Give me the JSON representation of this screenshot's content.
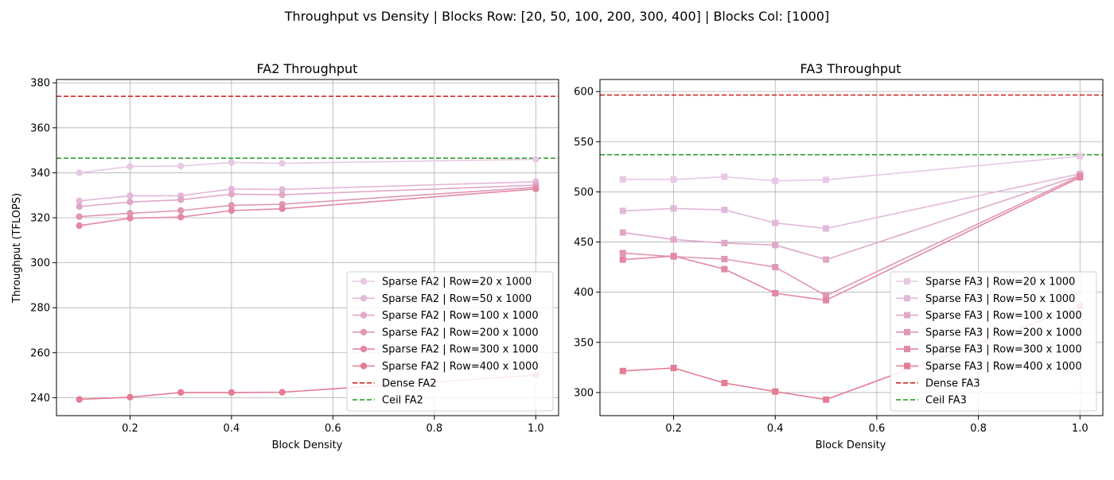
{
  "suptitle": "Throughput vs Density | Blocks Row: [20, 50, 100, 200, 300, 400] | Blocks Col: [1000]",
  "chart_data": [
    {
      "type": "line",
      "title": "FA2 Throughput",
      "xlabel": "Block Density",
      "ylabel": "Throughput (TFLOPS)",
      "xlim": [
        0.055,
        1.045
      ],
      "ylim": [
        232,
        381.5
      ],
      "xticks": [
        0.2,
        0.4,
        0.6,
        0.8,
        1.0
      ],
      "xtick_labels": [
        "0.2",
        "0.4",
        "0.6",
        "0.8",
        "1.0"
      ],
      "yticks": [
        240,
        260,
        280,
        300,
        320,
        340,
        360,
        380
      ],
      "ytick_labels": [
        "240",
        "260",
        "280",
        "300",
        "320",
        "340",
        "360",
        "380"
      ],
      "grid": true,
      "marker": "circle",
      "x": [
        0.1,
        0.2,
        0.3,
        0.4,
        0.5,
        1.0
      ],
      "legend_position": "lower right",
      "series": [
        {
          "name": "Sparse FA2 | Row=20 x 1000",
          "color": "#e8c8e4",
          "values": [
            340.0,
            342.8,
            343.0,
            344.6,
            344.2,
            346.0
          ]
        },
        {
          "name": "Sparse FA2 | Row=50 x 1000",
          "color": "#e3b8d8",
          "values": [
            327.5,
            329.8,
            329.8,
            332.8,
            332.6,
            336.0
          ]
        },
        {
          "name": "Sparse FA2 | Row=100 x 1000",
          "color": "#e0a8c8",
          "values": [
            325.0,
            327.0,
            328.0,
            330.5,
            330.2,
            334.5
          ]
        },
        {
          "name": "Sparse FA2 | Row=200 x 1000",
          "color": "#e096b4",
          "values": [
            320.5,
            322.0,
            323.2,
            325.5,
            326.0,
            333.5
          ]
        },
        {
          "name": "Sparse FA2 | Row=300 x 1000",
          "color": "#e388a2",
          "values": [
            316.5,
            319.8,
            320.3,
            323.2,
            324.0,
            332.8
          ]
        },
        {
          "name": "Sparse FA2 | Row=400 x 1000",
          "color": "#e47c94",
          "values": [
            239.2,
            240.2,
            242.3,
            242.3,
            242.4,
            250.0
          ]
        }
      ],
      "reference_lines": [
        {
          "name": "Dense FA2",
          "color": "#d62728",
          "value": 374.0
        },
        {
          "name": "Ceil FA2",
          "color": "#2ca02c",
          "value": 346.5
        }
      ]
    },
    {
      "type": "line",
      "title": "FA3 Throughput",
      "xlabel": "Block Density",
      "ylabel": "",
      "xlim": [
        0.055,
        1.045
      ],
      "ylim": [
        277,
        612
      ],
      "xticks": [
        0.2,
        0.4,
        0.6,
        0.8,
        1.0
      ],
      "xtick_labels": [
        "0.2",
        "0.4",
        "0.6",
        "0.8",
        "1.0"
      ],
      "yticks": [
        300,
        350,
        400,
        450,
        500,
        550,
        600
      ],
      "ytick_labels": [
        "300",
        "350",
        "400",
        "450",
        "500",
        "550",
        "600"
      ],
      "grid": true,
      "marker": "square",
      "x": [
        0.1,
        0.2,
        0.3,
        0.4,
        0.5,
        1.0
      ],
      "legend_position": "lower right",
      "series": [
        {
          "name": "Sparse FA3 | Row=20 x 1000",
          "color": "#e8c8e4",
          "values": [
            512.5,
            512.3,
            515.0,
            511.0,
            512.0,
            535.5
          ]
        },
        {
          "name": "Sparse FA3 | Row=50 x 1000",
          "color": "#e3b8d8",
          "values": [
            481.0,
            483.5,
            482.0,
            469.0,
            463.5,
            518.0
          ]
        },
        {
          "name": "Sparse FA3 | Row=100 x 1000",
          "color": "#e0a8c8",
          "values": [
            459.5,
            452.5,
            449.0,
            447.0,
            432.5,
            516.5
          ]
        },
        {
          "name": "Sparse FA3 | Row=200 x 1000",
          "color": "#e096b4",
          "values": [
            439.0,
            435.5,
            433.0,
            425.0,
            396.5,
            516.0
          ]
        },
        {
          "name": "Sparse FA3 | Row=300 x 1000",
          "color": "#e388a2",
          "values": [
            432.5,
            436.0,
            423.0,
            399.0,
            392.0,
            514.5
          ]
        },
        {
          "name": "Sparse FA3 | Row=400 x 1000",
          "color": "#e47c94",
          "values": [
            321.5,
            324.5,
            309.5,
            301.0,
            293.0,
            386.0
          ]
        }
      ],
      "reference_lines": [
        {
          "name": "Dense FA3",
          "color": "#d62728",
          "value": 596.5
        },
        {
          "name": "Ceil FA3",
          "color": "#2ca02c",
          "value": 537.0
        }
      ]
    }
  ]
}
